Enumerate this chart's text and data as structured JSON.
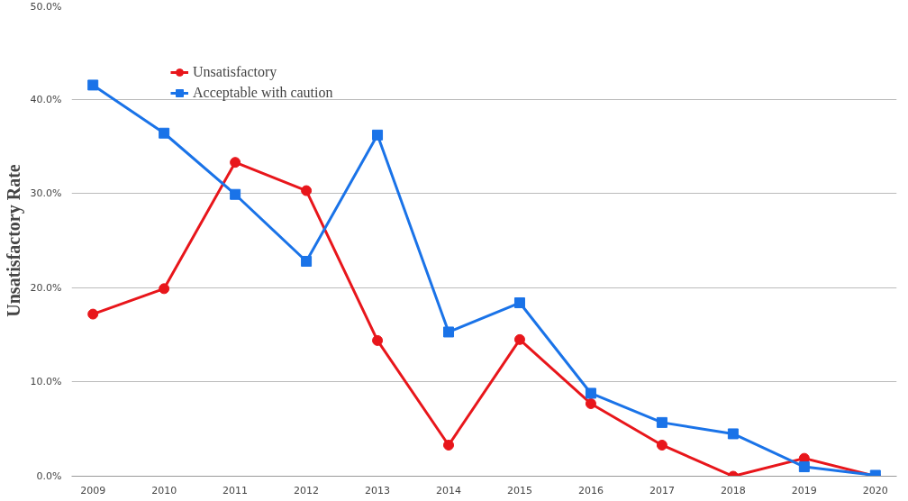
{
  "chart_data": {
    "type": "line",
    "ylabel": "Unsatisfactory Rate",
    "categories": [
      "2009",
      "2010",
      "2011",
      "2012",
      "2013",
      "2014",
      "2015",
      "2016",
      "2017",
      "2018",
      "2019",
      "2020"
    ],
    "series": [
      {
        "name": "Unsatisfactory",
        "color": "#e8161b",
        "marker": "circle",
        "values": [
          17.2,
          19.9,
          33.3,
          30.3,
          14.4,
          3.3,
          14.5,
          7.7,
          3.3,
          0,
          1.9,
          0
        ]
      },
      {
        "name": "Acceptable with caution",
        "color": "#1a73e8",
        "marker": "square",
        "values": [
          41.5,
          36.4,
          29.9,
          22.8,
          36.2,
          15.3,
          18.4,
          8.8,
          5.7,
          4.5,
          1.0,
          0.1
        ]
      }
    ],
    "ylim": [
      0,
      50
    ],
    "yticks": [
      {
        "value": 0,
        "label": "0.0%"
      },
      {
        "value": 10,
        "label": "10.0%"
      },
      {
        "value": 20,
        "label": "20.0%"
      },
      {
        "value": 30,
        "label": "30.0%"
      },
      {
        "value": 40,
        "label": "40.0%"
      },
      {
        "value": 50,
        "label": "50.0%"
      }
    ],
    "grid": "y",
    "legend": "top left",
    "line_style": "solid"
  }
}
